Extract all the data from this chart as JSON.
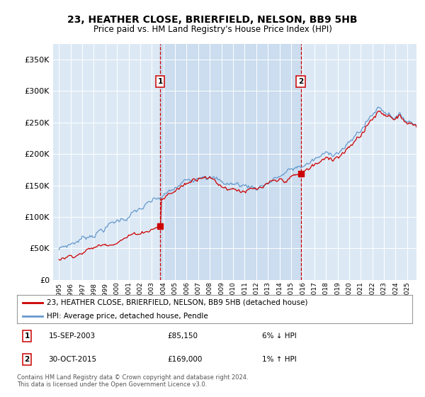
{
  "title": "23, HEATHER CLOSE, BRIERFIELD, NELSON, BB9 5HB",
  "subtitle": "Price paid vs. HM Land Registry's House Price Index (HPI)",
  "plot_bg_color": "#dce9f5",
  "shade_color": "#c5d8ed",
  "line1_color": "#cc0000",
  "line2_color": "#6699cc",
  "vline_color": "#cc0000",
  "ylim": [
    0,
    375000
  ],
  "yticks": [
    0,
    50000,
    100000,
    150000,
    200000,
    250000,
    300000,
    350000
  ],
  "legend_line1": "23, HEATHER CLOSE, BRIERFIELD, NELSON, BB9 5HB (detached house)",
  "legend_line2": "HPI: Average price, detached house, Pendle",
  "annotation1_date": "15-SEP-2003",
  "annotation1_price": "£85,150",
  "annotation1_hpi": "6% ↓ HPI",
  "annotation2_date": "30-OCT-2015",
  "annotation2_price": "£169,000",
  "annotation2_hpi": "1% ↑ HPI",
  "footer": "Contains HM Land Registry data © Crown copyright and database right 2024.\nThis data is licensed under the Open Government Licence v3.0.",
  "sale1_year": 2003.71,
  "sale1_price": 85150,
  "sale2_year": 2015.83,
  "sale2_price": 169000
}
